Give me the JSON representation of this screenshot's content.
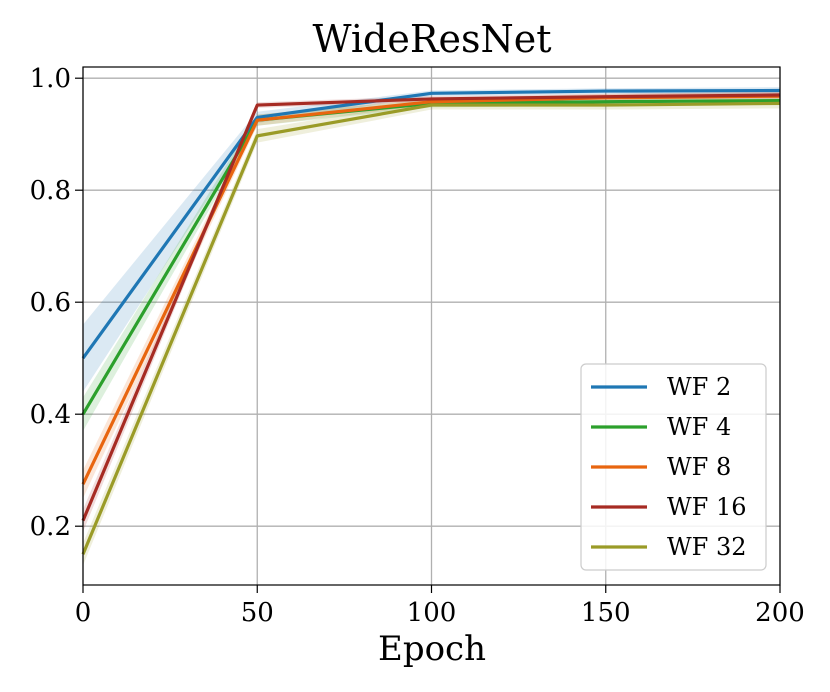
{
  "chart_data": {
    "type": "line",
    "title": "WideResNet",
    "xlabel": "Epoch",
    "ylabel": "",
    "x": [
      0,
      50,
      100,
      150,
      200
    ],
    "xlim": [
      0,
      200
    ],
    "ylim": [
      0.095,
      1.02
    ],
    "xticks": [
      "0",
      "50",
      "100",
      "150",
      "200"
    ],
    "yticks": [
      "0.2",
      "0.4",
      "0.6",
      "0.8",
      "1.0"
    ],
    "grid": true,
    "legend_position": "lower-right",
    "series": [
      {
        "name": "WF 2",
        "color": "#1f77b4",
        "values": [
          0.5,
          0.93,
          0.973,
          0.977,
          0.978
        ],
        "lower": [
          0.44,
          0.92,
          0.968,
          0.972,
          0.972
        ],
        "upper": [
          0.56,
          0.94,
          0.978,
          0.982,
          0.984
        ]
      },
      {
        "name": "WF 4",
        "color": "#2ca02c",
        "values": [
          0.4,
          0.925,
          0.955,
          0.958,
          0.96
        ],
        "lower": [
          0.37,
          0.915,
          0.948,
          0.951,
          0.952
        ],
        "upper": [
          0.43,
          0.935,
          0.962,
          0.965,
          0.968
        ]
      },
      {
        "name": "WF 8",
        "color": "#e8650f",
        "values": [
          0.275,
          0.925,
          0.958,
          0.965,
          0.968
        ],
        "lower": [
          0.25,
          0.915,
          0.952,
          0.958,
          0.961
        ],
        "upper": [
          0.3,
          0.935,
          0.964,
          0.972,
          0.975
        ]
      },
      {
        "name": "WF 16",
        "color": "#a62b23",
        "values": [
          0.21,
          0.952,
          0.963,
          0.967,
          0.97
        ],
        "lower": [
          0.19,
          0.947,
          0.958,
          0.962,
          0.964
        ],
        "upper": [
          0.23,
          0.957,
          0.968,
          0.972,
          0.976
        ]
      },
      {
        "name": "WF 32",
        "color": "#9a9b27",
        "values": [
          0.15,
          0.897,
          0.952,
          0.952,
          0.955
        ],
        "lower": [
          0.13,
          0.885,
          0.944,
          0.944,
          0.946
        ],
        "upper": [
          0.17,
          0.909,
          0.96,
          0.96,
          0.964
        ]
      }
    ]
  }
}
